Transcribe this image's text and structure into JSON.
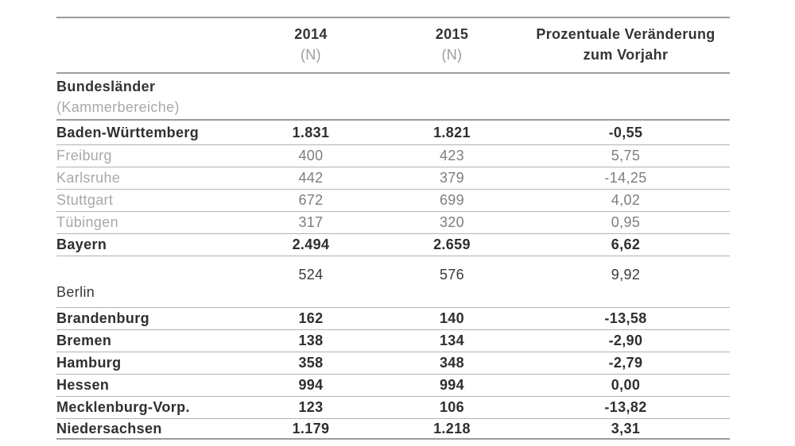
{
  "table": {
    "header": {
      "col_2014": {
        "year": "2014",
        "sub": "(N)"
      },
      "col_2015": {
        "year": "2015",
        "sub": "(N)"
      },
      "col_pct": {
        "line1": "Prozentuale Veränderung",
        "line2": "zum Vorjahr"
      }
    },
    "section_header": {
      "title": "Bundesländer",
      "subtitle": "(Kammerbereiche)"
    },
    "rows": [
      {
        "name": "Baden-Württemberg",
        "v2014": "1.831",
        "v2015": "1.821",
        "pct": "-0,55",
        "kind": "state"
      },
      {
        "name": "Freiburg",
        "v2014": "400",
        "v2015": "423",
        "pct": "5,75",
        "kind": "chamber"
      },
      {
        "name": "Karlsruhe",
        "v2014": "442",
        "v2015": "379",
        "pct": "-14,25",
        "kind": "chamber"
      },
      {
        "name": "Stuttgart",
        "v2014": "672",
        "v2015": "699",
        "pct": "4,02",
        "kind": "chamber"
      },
      {
        "name": "Tübingen",
        "v2014": "317",
        "v2015": "320",
        "pct": "0,95",
        "kind": "chamber"
      },
      {
        "name": "Bayern",
        "v2014": "2.494",
        "v2015": "2.659",
        "pct": "6,62",
        "kind": "state"
      },
      {
        "name": "Berlin",
        "v2014": "524",
        "v2015": "576",
        "pct": "9,92",
        "kind": "state-tall"
      },
      {
        "name": "Brandenburg",
        "v2014": "162",
        "v2015": "140",
        "pct": "-13,58",
        "kind": "state"
      },
      {
        "name": "Bremen",
        "v2014": "138",
        "v2015": "134",
        "pct": "-2,90",
        "kind": "state"
      },
      {
        "name": "Hamburg",
        "v2014": "358",
        "v2015": "348",
        "pct": "-2,79",
        "kind": "state"
      },
      {
        "name": "Hessen",
        "v2014": "994",
        "v2015": "994",
        "pct": "0,00",
        "kind": "state"
      },
      {
        "name": "Mecklenburg-Vorp.",
        "v2014": "123",
        "v2015": "106",
        "pct": "-13,82",
        "kind": "state"
      },
      {
        "name": "Niedersachsen",
        "v2014": "1.179",
        "v2015": "1.218",
        "pct": "3,31",
        "kind": "state"
      }
    ],
    "colors": {
      "rule_strong": "#9b9b9b",
      "rule_light": "#b3b3b3",
      "text_dark": "#2f2f2f",
      "text_gray_label": "#a8a8a8",
      "text_gray_number": "#7e7e7e"
    }
  }
}
